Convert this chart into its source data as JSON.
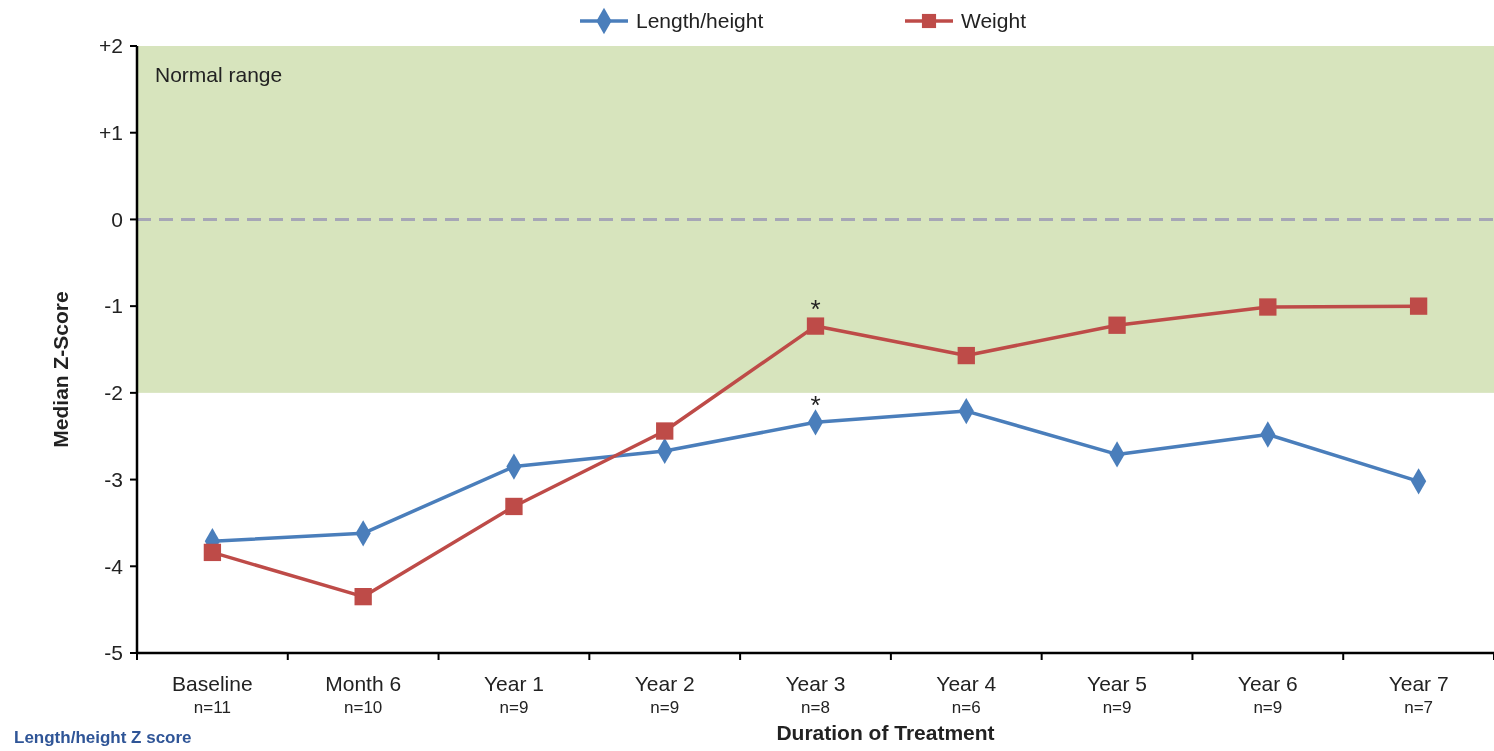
{
  "chart_data": {
    "type": "line",
    "xlabel": "Duration of Treatment",
    "ylabel": "Median Z-Score",
    "categories": [
      "Baseline\nn=11",
      "Month 6\nn=10",
      "Year 1\nn=9",
      "Year 2\nn=9",
      "Year 3\nn=8",
      "Year 4\nn=6",
      "Year 5\nn=9",
      "Year 6\nn=9",
      "Year 7\nn=7"
    ],
    "series": [
      {
        "name": "Length/height",
        "color": "#4a7ebb",
        "marker": "diamond",
        "values": [
          -3.71,
          -3.62,
          -2.85,
          -2.67,
          -2.34,
          -2.21,
          -2.71,
          -2.48,
          -3.02
        ]
      },
      {
        "name": "Weight",
        "color": "#be4b48",
        "marker": "square",
        "values": [
          -3.84,
          -4.35,
          -3.31,
          -2.44,
          -1.23,
          -1.57,
          -1.22,
          -1.01,
          -1.0
        ]
      }
    ],
    "ylim": [
      -5,
      2
    ],
    "yticks": [
      {
        "value": 2,
        "label": "+2"
      },
      {
        "value": 1,
        "label": "+1"
      },
      0,
      -1,
      -2,
      -3,
      -4,
      -5
    ],
    "bands": [
      {
        "axis": "y",
        "from": -2,
        "to": 2,
        "label": "Normal range",
        "color": "#d7e4bd"
      }
    ],
    "ref_lines": [
      {
        "axis": "y",
        "value": 0,
        "color": "#a6a6b6",
        "line_style": "dashed"
      }
    ],
    "annotations": [
      {
        "text": "*",
        "x": "Year 3\nn=8",
        "y": -1.23
      },
      {
        "text": "*",
        "x": "Year 3\nn=8",
        "y": -2.34
      },
      "Length/height Z score"
    ],
    "legend": "top",
    "grid": false
  }
}
